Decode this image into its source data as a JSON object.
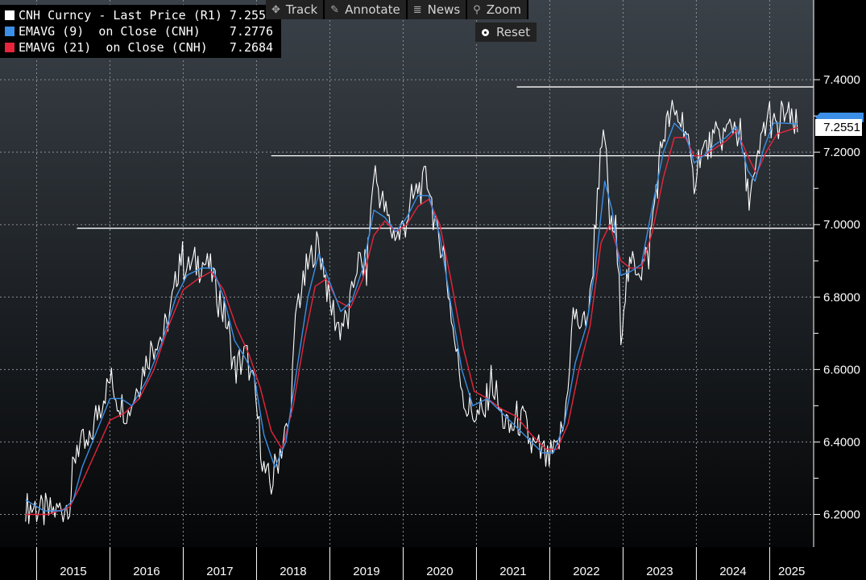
{
  "legend": [
    {
      "label": "CNH Curncy - Last Price (R1)",
      "value": "7.2551",
      "color": "#ffffff"
    },
    {
      "label": "EMAVG (9)  on Close (CNH)",
      "value": "7.2776",
      "color": "#3b8fe6"
    },
    {
      "label": "EMAVG (21)  on Close (CNH)",
      "value": "7.2684",
      "color": "#e8243c"
    }
  ],
  "toolbar": {
    "track_label": "Track",
    "annotate_label": "Annotate",
    "news_label": "News",
    "zoom_label": "Zoom",
    "reset_label": "Reset"
  },
  "last_price_label": "7.2551",
  "chart_data": {
    "type": "line",
    "security": "CNH Curncy",
    "x_tick_labels": [
      "2015",
      "2016",
      "2017",
      "2018",
      "2019",
      "2020",
      "2021",
      "2022",
      "2023",
      "2024",
      "2025"
    ],
    "y_tick_labels": [
      "7.4000",
      "7.2000",
      "7.0000",
      "6.8000",
      "6.6000",
      "6.4000",
      "6.2000"
    ],
    "ylim": [
      6.11,
      7.62
    ],
    "y_axis_side": "right",
    "grid": true,
    "legend_position": "top-left",
    "horizontal_lines": [
      {
        "y": 7.38,
        "x_from": 2021.55
      },
      {
        "y": 7.19,
        "x_from": 2018.2
      },
      {
        "y": 6.99,
        "x_from": 2015.55
      }
    ],
    "series": [
      {
        "name": "CNH Curncy - Last Price (R1)",
        "color": "#ffffff",
        "points": [
          [
            2014.85,
            6.22
          ],
          [
            2015.0,
            6.22
          ],
          [
            2015.1,
            6.2
          ],
          [
            2015.25,
            6.21
          ],
          [
            2015.45,
            6.23
          ],
          [
            2015.55,
            6.4
          ],
          [
            2015.7,
            6.38
          ],
          [
            2015.85,
            6.5
          ],
          [
            2016.0,
            6.57
          ],
          [
            2016.1,
            6.52
          ],
          [
            2016.25,
            6.48
          ],
          [
            2016.45,
            6.6
          ],
          [
            2016.6,
            6.68
          ],
          [
            2016.75,
            6.7
          ],
          [
            2016.85,
            6.78
          ],
          [
            2016.95,
            6.92
          ],
          [
            2017.05,
            6.88
          ],
          [
            2017.2,
            6.9
          ],
          [
            2017.35,
            6.89
          ],
          [
            2017.5,
            6.79
          ],
          [
            2017.6,
            6.72
          ],
          [
            2017.7,
            6.6
          ],
          [
            2017.85,
            6.64
          ],
          [
            2017.97,
            6.54
          ],
          [
            2018.1,
            6.32
          ],
          [
            2018.2,
            6.28
          ],
          [
            2018.32,
            6.38
          ],
          [
            2018.45,
            6.45
          ],
          [
            2018.55,
            6.78
          ],
          [
            2018.7,
            6.88
          ],
          [
            2018.82,
            6.95
          ],
          [
            2018.92,
            6.88
          ],
          [
            2019.0,
            6.78
          ],
          [
            2019.12,
            6.72
          ],
          [
            2019.25,
            6.74
          ],
          [
            2019.37,
            6.9
          ],
          [
            2019.5,
            6.87
          ],
          [
            2019.6,
            7.15
          ],
          [
            2019.7,
            7.07
          ],
          [
            2019.85,
            6.98
          ],
          [
            2019.95,
            6.97
          ],
          [
            2020.05,
            7.02
          ],
          [
            2020.2,
            7.1
          ],
          [
            2020.35,
            7.12
          ],
          [
            2020.45,
            6.98
          ],
          [
            2020.55,
            6.93
          ],
          [
            2020.7,
            6.68
          ],
          [
            2020.85,
            6.5
          ],
          [
            2020.95,
            6.48
          ],
          [
            2021.1,
            6.47
          ],
          [
            2021.2,
            6.58
          ],
          [
            2021.32,
            6.48
          ],
          [
            2021.45,
            6.43
          ],
          [
            2021.55,
            6.46
          ],
          [
            2021.65,
            6.45
          ],
          [
            2021.75,
            6.39
          ],
          [
            2021.85,
            6.37
          ],
          [
            2021.97,
            6.35
          ],
          [
            2022.08,
            6.37
          ],
          [
            2022.2,
            6.45
          ],
          [
            2022.32,
            6.75
          ],
          [
            2022.45,
            6.72
          ],
          [
            2022.55,
            6.78
          ],
          [
            2022.65,
            7.1
          ],
          [
            2022.75,
            7.25
          ],
          [
            2022.82,
            7.0
          ],
          [
            2022.9,
            6.98
          ],
          [
            2022.97,
            6.72
          ],
          [
            2023.05,
            6.85
          ],
          [
            2023.15,
            6.9
          ],
          [
            2023.25,
            6.88
          ],
          [
            2023.35,
            6.92
          ],
          [
            2023.45,
            7.1
          ],
          [
            2023.55,
            7.25
          ],
          [
            2023.65,
            7.3
          ],
          [
            2023.75,
            7.3
          ],
          [
            2023.85,
            7.27
          ],
          [
            2023.95,
            7.12
          ],
          [
            2024.05,
            7.19
          ],
          [
            2024.2,
            7.22
          ],
          [
            2024.35,
            7.24
          ],
          [
            2024.5,
            7.28
          ],
          [
            2024.6,
            7.25
          ],
          [
            2024.7,
            7.08
          ],
          [
            2024.8,
            7.12
          ],
          [
            2024.9,
            7.25
          ],
          [
            2025.0,
            7.31
          ],
          [
            2025.1,
            7.25
          ],
          [
            2025.2,
            7.31
          ],
          [
            2025.3,
            7.28
          ],
          [
            2025.38,
            7.2551
          ]
        ]
      },
      {
        "name": "EMAVG (9)  on Close (CNH)",
        "color": "#3b8fe6",
        "points": [
          [
            2014.85,
            6.24
          ],
          [
            2015.1,
            6.21
          ],
          [
            2015.35,
            6.21
          ],
          [
            2015.5,
            6.24
          ],
          [
            2015.62,
            6.33
          ],
          [
            2015.8,
            6.42
          ],
          [
            2016.0,
            6.52
          ],
          [
            2016.15,
            6.52
          ],
          [
            2016.3,
            6.5
          ],
          [
            2016.5,
            6.57
          ],
          [
            2016.7,
            6.67
          ],
          [
            2016.9,
            6.8
          ],
          [
            2017.05,
            6.86
          ],
          [
            2017.25,
            6.88
          ],
          [
            2017.4,
            6.88
          ],
          [
            2017.55,
            6.8
          ],
          [
            2017.7,
            6.68
          ],
          [
            2017.85,
            6.63
          ],
          [
            2017.97,
            6.58
          ],
          [
            2018.1,
            6.42
          ],
          [
            2018.25,
            6.33
          ],
          [
            2018.4,
            6.4
          ],
          [
            2018.55,
            6.6
          ],
          [
            2018.7,
            6.8
          ],
          [
            2018.85,
            6.92
          ],
          [
            2019.0,
            6.84
          ],
          [
            2019.15,
            6.76
          ],
          [
            2019.3,
            6.79
          ],
          [
            2019.45,
            6.88
          ],
          [
            2019.6,
            7.04
          ],
          [
            2019.75,
            7.02
          ],
          [
            2019.9,
            6.98
          ],
          [
            2020.05,
            7.02
          ],
          [
            2020.2,
            7.08
          ],
          [
            2020.35,
            7.08
          ],
          [
            2020.5,
            6.97
          ],
          [
            2020.65,
            6.78
          ],
          [
            2020.8,
            6.6
          ],
          [
            2020.95,
            6.5
          ],
          [
            2021.15,
            6.52
          ],
          [
            2021.3,
            6.49
          ],
          [
            2021.5,
            6.45
          ],
          [
            2021.7,
            6.41
          ],
          [
            2021.9,
            6.37
          ],
          [
            2022.05,
            6.37
          ],
          [
            2022.2,
            6.45
          ],
          [
            2022.35,
            6.62
          ],
          [
            2022.5,
            6.72
          ],
          [
            2022.62,
            6.88
          ],
          [
            2022.75,
            7.12
          ],
          [
            2022.85,
            7.04
          ],
          [
            2022.97,
            6.86
          ],
          [
            2023.1,
            6.87
          ],
          [
            2023.25,
            6.89
          ],
          [
            2023.4,
            7.05
          ],
          [
            2023.55,
            7.2
          ],
          [
            2023.7,
            7.28
          ],
          [
            2023.85,
            7.25
          ],
          [
            2023.97,
            7.17
          ],
          [
            2024.1,
            7.19
          ],
          [
            2024.25,
            7.22
          ],
          [
            2024.4,
            7.24
          ],
          [
            2024.55,
            7.27
          ],
          [
            2024.7,
            7.15
          ],
          [
            2024.8,
            7.12
          ],
          [
            2024.92,
            7.21
          ],
          [
            2025.05,
            7.28
          ],
          [
            2025.2,
            7.28
          ],
          [
            2025.38,
            7.2776
          ]
        ]
      },
      {
        "name": "EMAVG (21)  on Close (CNH)",
        "color": "#e8243c",
        "points": [
          [
            2014.85,
            6.2
          ],
          [
            2015.15,
            6.2
          ],
          [
            2015.45,
            6.22
          ],
          [
            2015.6,
            6.28
          ],
          [
            2015.8,
            6.37
          ],
          [
            2016.0,
            6.46
          ],
          [
            2016.2,
            6.48
          ],
          [
            2016.4,
            6.52
          ],
          [
            2016.6,
            6.6
          ],
          [
            2016.8,
            6.72
          ],
          [
            2017.0,
            6.82
          ],
          [
            2017.2,
            6.85
          ],
          [
            2017.38,
            6.87
          ],
          [
            2017.55,
            6.82
          ],
          [
            2017.72,
            6.72
          ],
          [
            2017.9,
            6.64
          ],
          [
            2018.05,
            6.55
          ],
          [
            2018.2,
            6.43
          ],
          [
            2018.35,
            6.38
          ],
          [
            2018.5,
            6.5
          ],
          [
            2018.65,
            6.68
          ],
          [
            2018.8,
            6.83
          ],
          [
            2018.95,
            6.85
          ],
          [
            2019.1,
            6.79
          ],
          [
            2019.28,
            6.77
          ],
          [
            2019.45,
            6.85
          ],
          [
            2019.6,
            6.97
          ],
          [
            2019.75,
            7.01
          ],
          [
            2019.9,
            6.98
          ],
          [
            2020.05,
            7.0
          ],
          [
            2020.2,
            7.05
          ],
          [
            2020.35,
            7.07
          ],
          [
            2020.5,
            7.0
          ],
          [
            2020.65,
            6.85
          ],
          [
            2020.82,
            6.66
          ],
          [
            2020.97,
            6.54
          ],
          [
            2021.15,
            6.52
          ],
          [
            2021.35,
            6.49
          ],
          [
            2021.55,
            6.47
          ],
          [
            2021.75,
            6.42
          ],
          [
            2021.95,
            6.38
          ],
          [
            2022.1,
            6.38
          ],
          [
            2022.25,
            6.45
          ],
          [
            2022.4,
            6.6
          ],
          [
            2022.55,
            6.72
          ],
          [
            2022.7,
            6.95
          ],
          [
            2022.82,
            7.0
          ],
          [
            2022.97,
            6.9
          ],
          [
            2023.1,
            6.88
          ],
          [
            2023.25,
            6.88
          ],
          [
            2023.4,
            6.98
          ],
          [
            2023.55,
            7.13
          ],
          [
            2023.7,
            7.24
          ],
          [
            2023.85,
            7.24
          ],
          [
            2023.97,
            7.19
          ],
          [
            2024.1,
            7.19
          ],
          [
            2024.25,
            7.21
          ],
          [
            2024.4,
            7.23
          ],
          [
            2024.55,
            7.26
          ],
          [
            2024.7,
            7.19
          ],
          [
            2024.82,
            7.14
          ],
          [
            2024.95,
            7.2
          ],
          [
            2025.1,
            7.25
          ],
          [
            2025.25,
            7.26
          ],
          [
            2025.38,
            7.2684
          ]
        ]
      }
    ]
  }
}
